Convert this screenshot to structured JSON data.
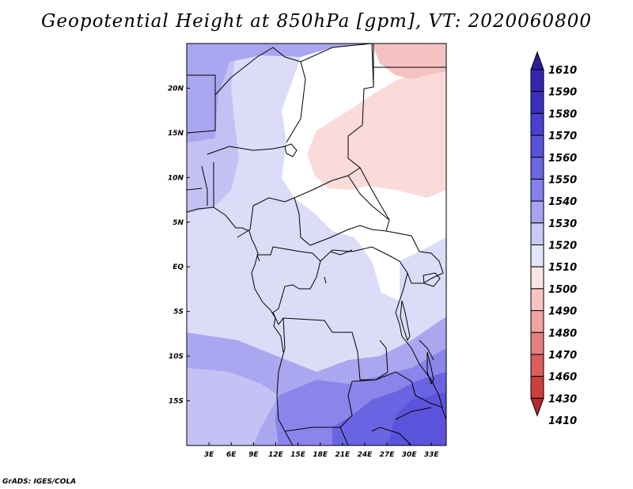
{
  "title": "Geopotential Height at 850hPa [gpm], VT: 2020060800",
  "credit": "GrADS: IGES/COLA",
  "map": {
    "lon_range": [
      0,
      35
    ],
    "lat_range": [
      -20,
      25
    ],
    "lon_ticks": [
      "3E",
      "6E",
      "9E",
      "12E",
      "15E",
      "18E",
      "21E",
      "24E",
      "27E",
      "30E",
      "33E"
    ],
    "lat_ticks": [
      "20N",
      "15N",
      "10N",
      "5N",
      "EQ",
      "5S",
      "10S",
      "15S"
    ]
  },
  "colorbar": {
    "levels": [
      "1610",
      "1590",
      "1580",
      "1570",
      "1560",
      "1550",
      "1540",
      "1530",
      "1520",
      "1510",
      "1500",
      "1490",
      "1480",
      "1470",
      "1460",
      "1430",
      "1410"
    ],
    "colors": [
      "#2c1d9e",
      "#3425b0",
      "#3b2fc0",
      "#4a3fd0",
      "#5a52dc",
      "#6d67e4",
      "#8580ea",
      "#a6a3f0",
      "#c9c8f6",
      "#e6e6fb",
      "#fde4e4",
      "#f7c4c4",
      "#efa3a3",
      "#e67f7f",
      "#da5e5e",
      "#cd3f3f",
      "#b82828"
    ]
  }
}
